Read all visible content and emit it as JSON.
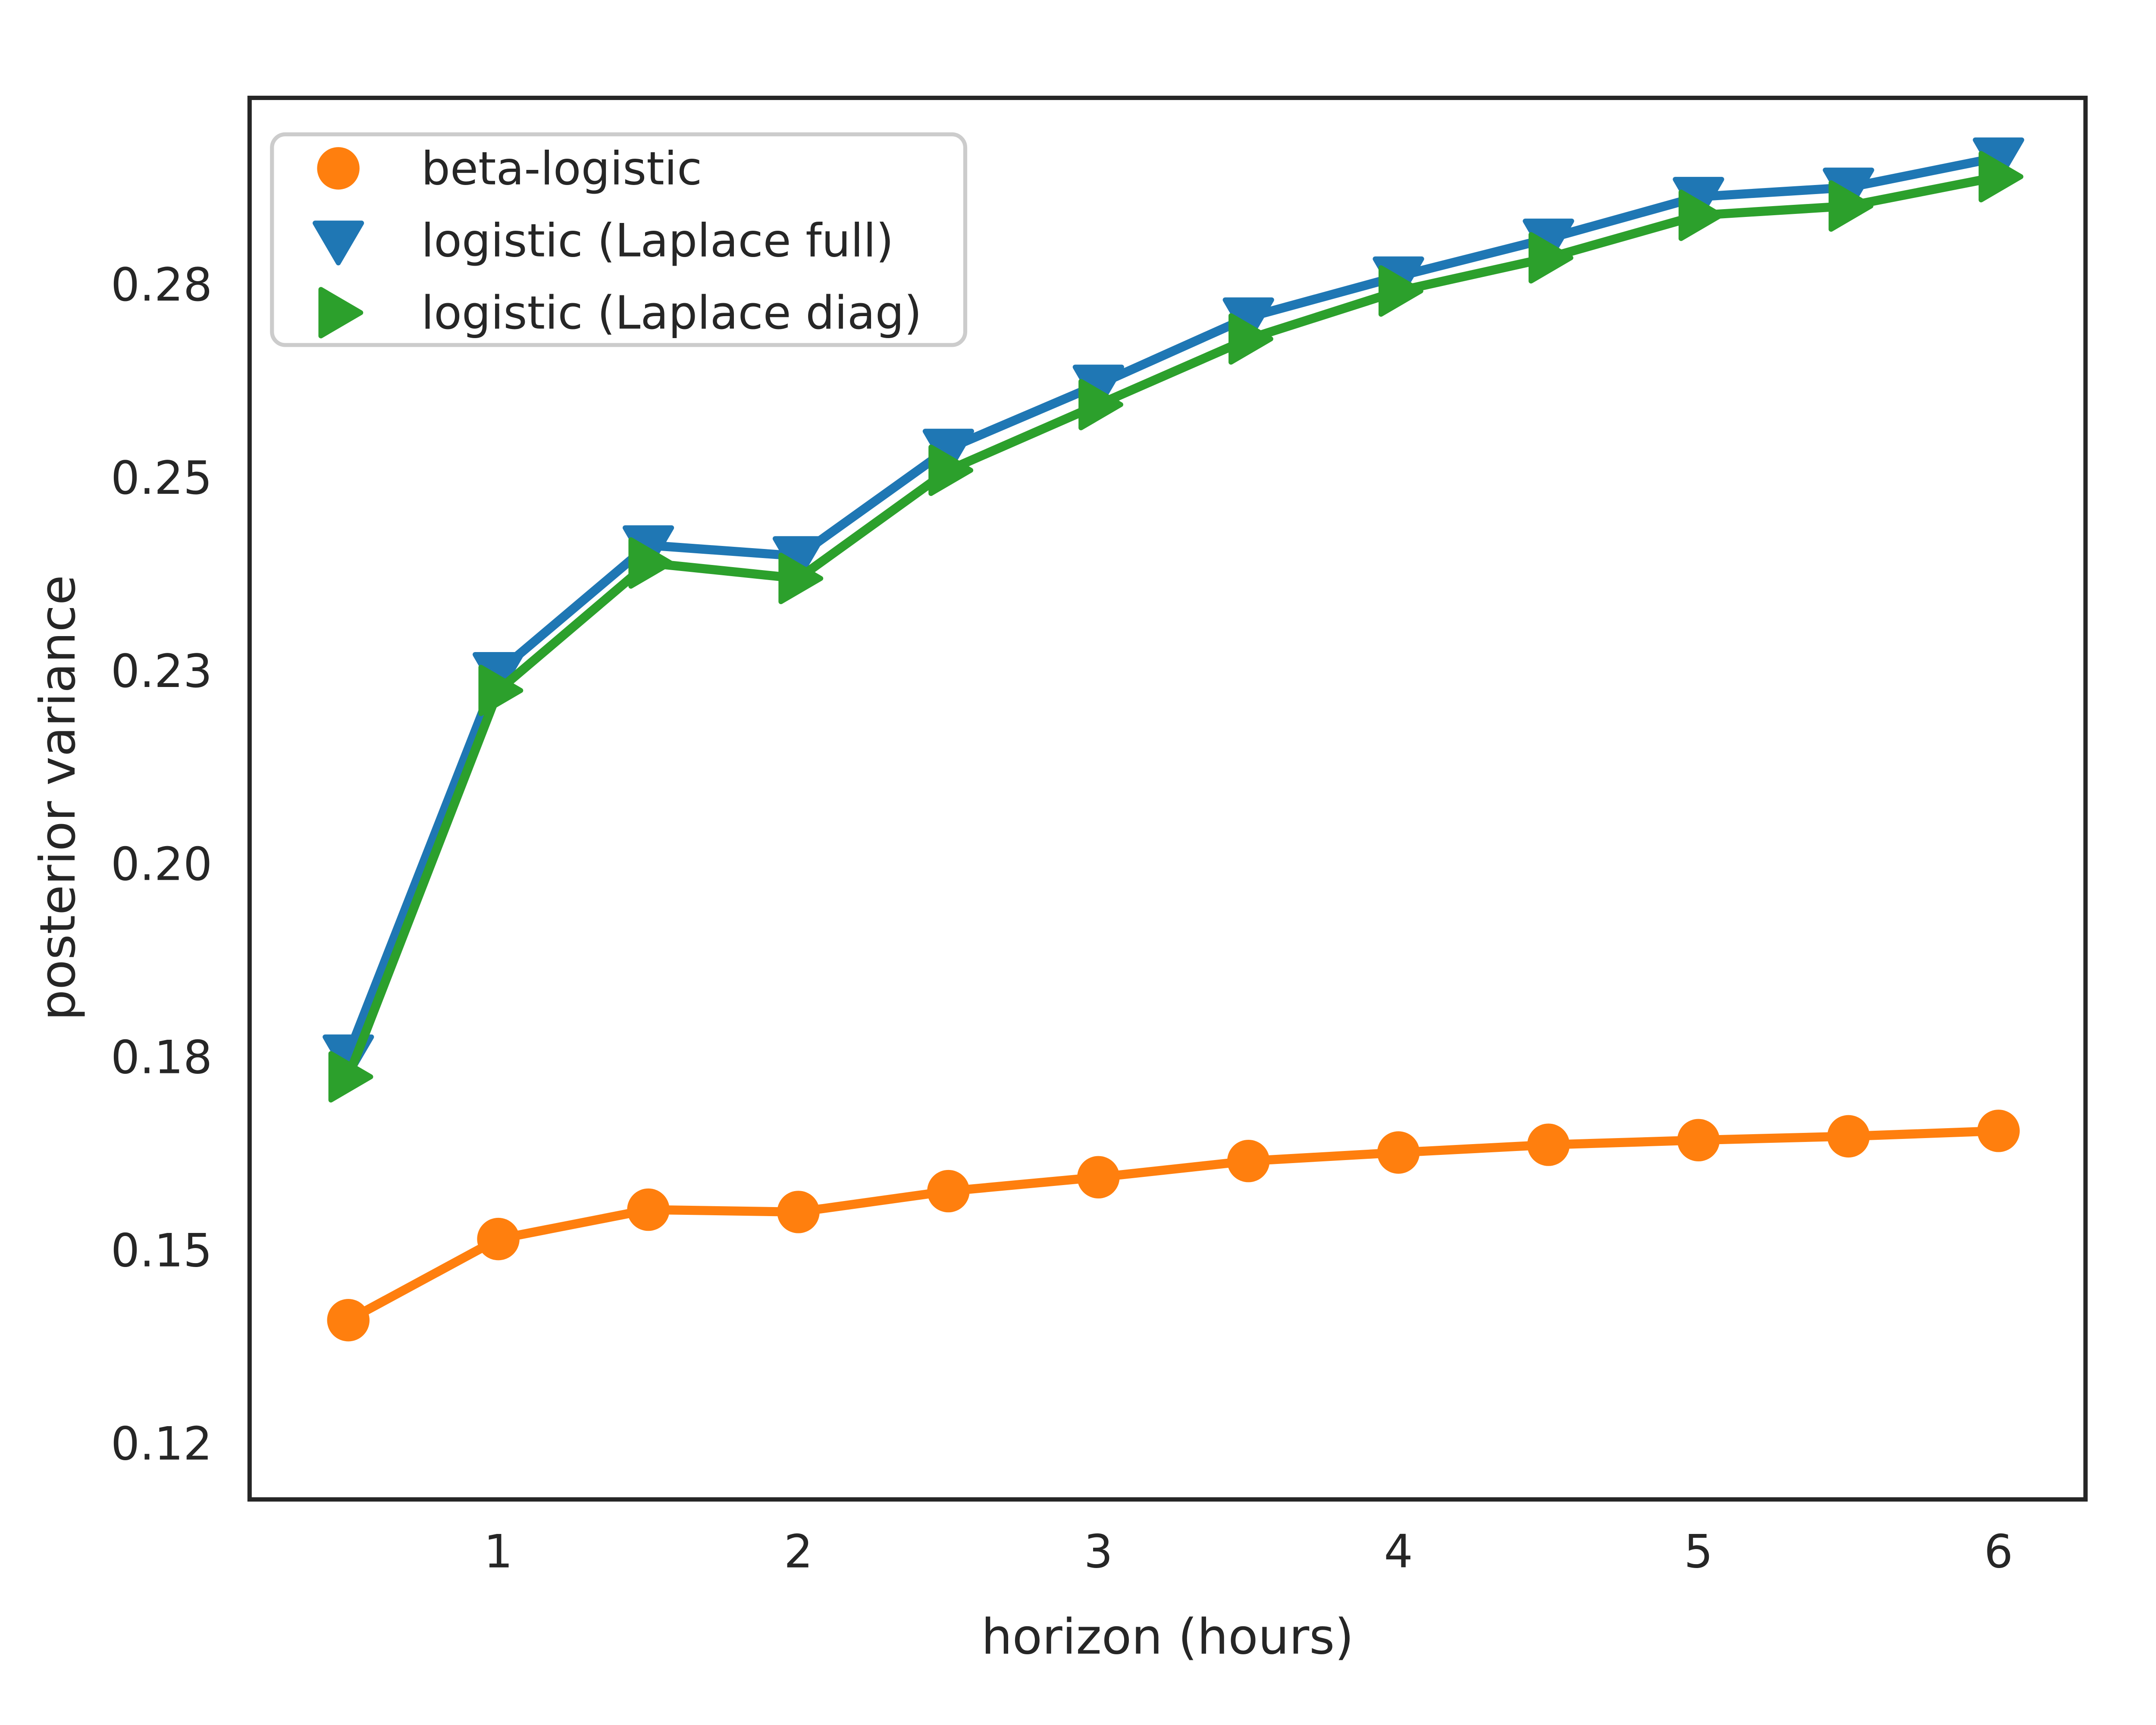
{
  "chart_data": {
    "type": "line",
    "title": "",
    "xlabel": "horizon (hours)",
    "ylabel": "posterior variance",
    "x": [
      0.5,
      1.0,
      1.5,
      2.0,
      2.5,
      3.0,
      3.5,
      4.0,
      4.5,
      5.0,
      5.5,
      6.0
    ],
    "series": [
      {
        "name": "beta-logistic",
        "color": "#ff7f0e",
        "marker": "circle",
        "values": [
          0.141,
          0.1515,
          0.1553,
          0.155,
          0.1577,
          0.1595,
          0.1616,
          0.1627,
          0.1637,
          0.1643,
          0.1648,
          0.1655
        ]
      },
      {
        "name": "logistic (Laplace full)",
        "color": "#1f77b4",
        "marker": "triangle-down",
        "values": [
          0.1754,
          0.2249,
          0.2413,
          0.2399,
          0.2538,
          0.2621,
          0.2708,
          0.2761,
          0.281,
          0.2864,
          0.2876,
          0.2915
        ]
      },
      {
        "name": "logistic (Laplace diag)",
        "color": "#2ca02c",
        "marker": "triangle-right",
        "values": [
          0.1725,
          0.2225,
          0.239,
          0.237,
          0.251,
          0.2595,
          0.268,
          0.2742,
          0.2785,
          0.284,
          0.2852,
          0.289
        ]
      }
    ],
    "x_ticks": [
      {
        "v": 1,
        "label": "1"
      },
      {
        "v": 2,
        "label": "2"
      },
      {
        "v": 3,
        "label": "3"
      },
      {
        "v": 4,
        "label": "4"
      },
      {
        "v": 5,
        "label": "5"
      },
      {
        "v": 6,
        "label": "6"
      }
    ],
    "y_ticks": [
      {
        "v": 0.125,
        "label": "0.12"
      },
      {
        "v": 0.15,
        "label": "0.15"
      },
      {
        "v": 0.175,
        "label": "0.18"
      },
      {
        "v": 0.2,
        "label": "0.20"
      },
      {
        "v": 0.225,
        "label": "0.23"
      },
      {
        "v": 0.25,
        "label": "0.25"
      },
      {
        "v": 0.275,
        "label": "0.28"
      }
    ],
    "xlim": [
      0.171,
      6.29
    ],
    "ylim": [
      0.1178,
      0.2992
    ],
    "grid": false,
    "legend_position": "upper-left",
    "line_width": 5.5,
    "background_color": "#ffffff",
    "text_color": "#262626",
    "spine_color": "#262626"
  }
}
